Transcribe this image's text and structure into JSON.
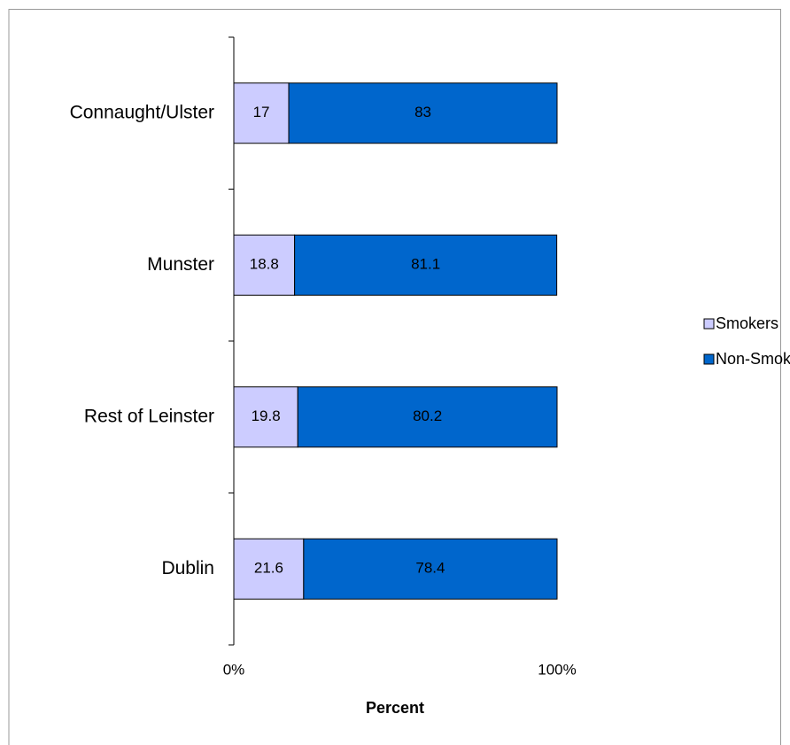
{
  "chart_data": {
    "type": "stacked-bar-horizontal",
    "categories": [
      "Connaught/Ulster",
      "Munster",
      "Rest of Leinster",
      "Dublin"
    ],
    "series": [
      {
        "name": "Smokers",
        "color": "#ccccff",
        "values": [
          17,
          18.8,
          19.8,
          21.6
        ]
      },
      {
        "name": "Non-Smokers",
        "color": "#0066cc",
        "values": [
          83,
          81.1,
          80.2,
          78.4
        ]
      }
    ],
    "xlim": [
      0,
      100
    ],
    "xticks": [
      {
        "value": 0,
        "label": "0%"
      },
      {
        "value": 100,
        "label": "100%"
      }
    ],
    "xlabel": "Percent",
    "legend": "right"
  }
}
